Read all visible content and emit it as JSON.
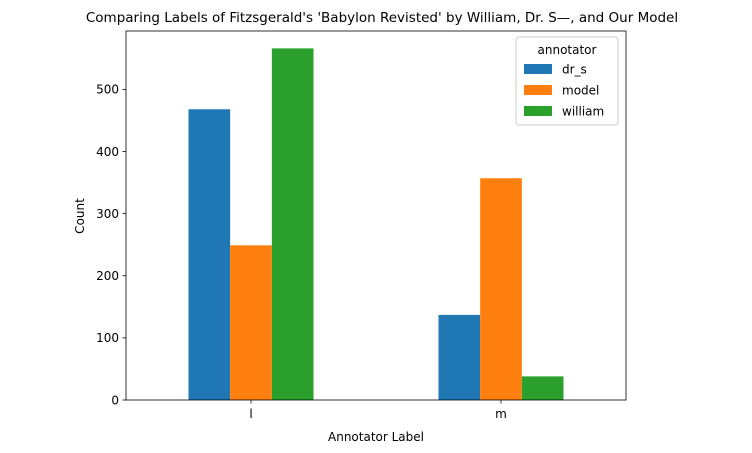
{
  "chart_data": {
    "type": "bar",
    "title": "Comparing Labels of Fitzsgerald's 'Babylon Revisted' by William, Dr. S—, and Our Model",
    "xlabel": "Annotator Label",
    "ylabel": "Count",
    "categories": [
      "l",
      "m"
    ],
    "series": [
      {
        "name": "dr_s",
        "values": [
          468,
          137
        ],
        "color": "#1f77b4"
      },
      {
        "name": "model",
        "values": [
          249,
          357
        ],
        "color": "#ff7f0e"
      },
      {
        "name": "william",
        "values": [
          566,
          38
        ],
        "color": "#2ca02c"
      }
    ],
    "ylim": [
      0,
      594
    ],
    "yticks": [
      0,
      100,
      200,
      300,
      400,
      500
    ],
    "grid": false,
    "legend": {
      "title": "annotator",
      "placement": "top-right"
    }
  }
}
